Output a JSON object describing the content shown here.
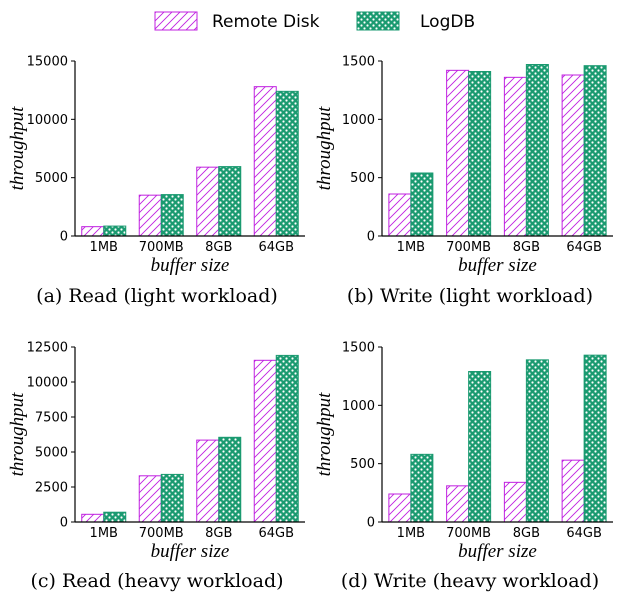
{
  "legend": {
    "items": [
      {
        "label": "Remote Disk",
        "color": "#c020e0",
        "pattern": "hatch"
      },
      {
        "label": "LogDB",
        "color": "#1a9a70",
        "pattern": "dots"
      }
    ]
  },
  "chart_data": [
    {
      "type": "bar",
      "caption": "(a) Read (light workload)",
      "xlabel": "buffer size",
      "ylabel": "throughput",
      "categories": [
        "1MB",
        "700MB",
        "8GB",
        "64GB"
      ],
      "ylim": [
        0,
        15000
      ],
      "yticks": [
        "0",
        "5000",
        "10000",
        "15000"
      ],
      "ytick_values": [
        0,
        5000,
        10000,
        15000
      ],
      "series": [
        {
          "name": "Remote Disk",
          "values": [
            800,
            3500,
            5900,
            12800
          ]
        },
        {
          "name": "LogDB",
          "values": [
            850,
            3550,
            5950,
            12400
          ]
        }
      ]
    },
    {
      "type": "bar",
      "caption": "(b) Write (light workload)",
      "xlabel": "buffer size",
      "ylabel": "throughput",
      "categories": [
        "1MB",
        "700MB",
        "8GB",
        "64GB"
      ],
      "ylim": [
        0,
        1500
      ],
      "yticks": [
        "0",
        "500",
        "1000",
        "1500"
      ],
      "ytick_values": [
        0,
        500,
        1000,
        1500
      ],
      "series": [
        {
          "name": "Remote Disk",
          "values": [
            360,
            1420,
            1360,
            1380
          ]
        },
        {
          "name": "LogDB",
          "values": [
            540,
            1410,
            1470,
            1460
          ]
        }
      ]
    },
    {
      "type": "bar",
      "caption": "(c) Read (heavy workload)",
      "xlabel": "buffer size",
      "ylabel": "throughput",
      "categories": [
        "1MB",
        "700MB",
        "8GB",
        "64GB"
      ],
      "ylim": [
        0,
        12500
      ],
      "yticks": [
        "0",
        "2500",
        "5000",
        "7500",
        "10000",
        "12500"
      ],
      "ytick_values": [
        0,
        2500,
        5000,
        7500,
        10000,
        12500
      ],
      "series": [
        {
          "name": "Remote Disk",
          "values": [
            550,
            3300,
            5850,
            11550
          ]
        },
        {
          "name": "LogDB",
          "values": [
            700,
            3400,
            6050,
            11900
          ]
        }
      ]
    },
    {
      "type": "bar",
      "caption": "(d) Write (heavy workload)",
      "xlabel": "buffer size",
      "ylabel": "throughput",
      "categories": [
        "1MB",
        "700MB",
        "8GB",
        "64GB"
      ],
      "ylim": [
        0,
        1500
      ],
      "yticks": [
        "0",
        "500",
        "1000",
        "1500"
      ],
      "ytick_values": [
        0,
        500,
        1000,
        1500
      ],
      "series": [
        {
          "name": "Remote Disk",
          "values": [
            240,
            310,
            340,
            530
          ]
        },
        {
          "name": "LogDB",
          "values": [
            580,
            1290,
            1390,
            1430
          ]
        }
      ]
    }
  ]
}
